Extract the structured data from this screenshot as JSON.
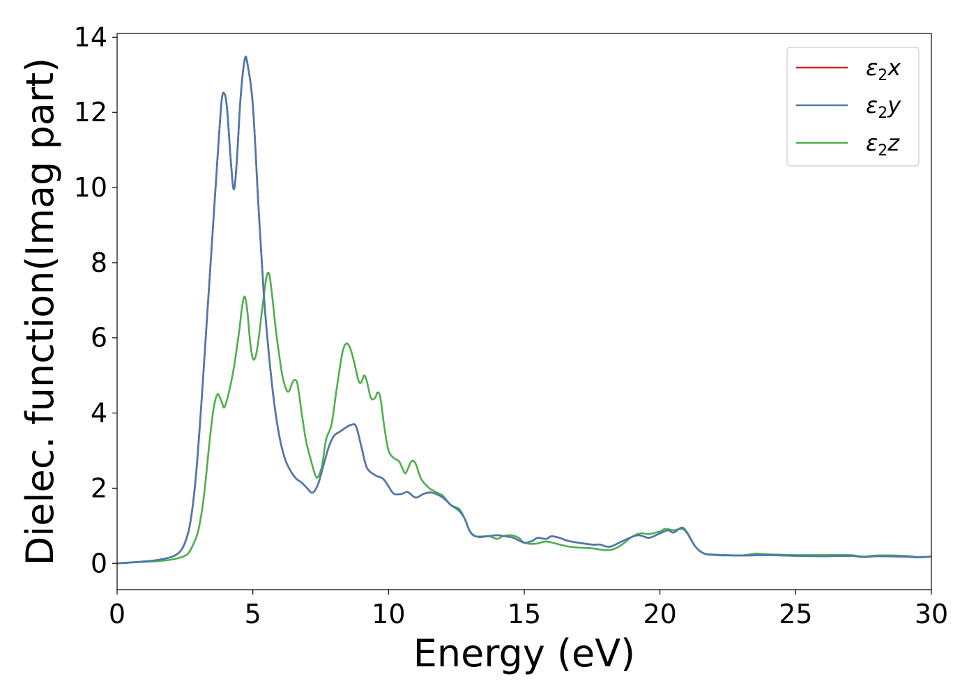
{
  "chart_data": {
    "type": "line",
    "xlabel": "Energy (eV)",
    "ylabel": "Dielec. function(Imag part)",
    "xlim": [
      0,
      30
    ],
    "ylim": [
      -0.7,
      14.1
    ],
    "xticks": [
      0,
      5,
      10,
      15,
      20,
      25,
      30
    ],
    "yticks": [
      0,
      2,
      4,
      6,
      8,
      10,
      12,
      14
    ],
    "grid": false,
    "legend_position": "top-right",
    "series": [
      {
        "name": "ε₂x",
        "legend_base": "ε",
        "legend_sub": "2",
        "legend_suffix": "x",
        "color": "#d62728",
        "points": [
          [
            0,
            0
          ],
          [
            1,
            0.05
          ],
          [
            1.5,
            0.09
          ],
          [
            2,
            0.17
          ],
          [
            2.3,
            0.3
          ],
          [
            2.5,
            0.55
          ],
          [
            2.7,
            1.1
          ],
          [
            2.9,
            2.3
          ],
          [
            3.1,
            4.2
          ],
          [
            3.3,
            6.4
          ],
          [
            3.5,
            8.6
          ],
          [
            3.7,
            10.8
          ],
          [
            3.85,
            12.3
          ],
          [
            3.95,
            12.5
          ],
          [
            4.05,
            12.1
          ],
          [
            4.2,
            10.6
          ],
          [
            4.3,
            9.95
          ],
          [
            4.4,
            10.6
          ],
          [
            4.55,
            12.4
          ],
          [
            4.7,
            13.4
          ],
          [
            4.8,
            13.3
          ],
          [
            5.0,
            12.2
          ],
          [
            5.2,
            9.6
          ],
          [
            5.4,
            7.2
          ],
          [
            5.6,
            5.5
          ],
          [
            5.8,
            4.2
          ],
          [
            6.0,
            3.3
          ],
          [
            6.2,
            2.75
          ],
          [
            6.4,
            2.45
          ],
          [
            6.6,
            2.25
          ],
          [
            6.8,
            2.15
          ],
          [
            7.0,
            2.0
          ],
          [
            7.2,
            1.88
          ],
          [
            7.4,
            2.1
          ],
          [
            7.6,
            2.6
          ],
          [
            7.8,
            3.1
          ],
          [
            8.0,
            3.4
          ],
          [
            8.2,
            3.5
          ],
          [
            8.4,
            3.6
          ],
          [
            8.6,
            3.68
          ],
          [
            8.8,
            3.65
          ],
          [
            9.0,
            3.1
          ],
          [
            9.2,
            2.55
          ],
          [
            9.5,
            2.35
          ],
          [
            9.8,
            2.25
          ],
          [
            10.0,
            2.05
          ],
          [
            10.2,
            1.85
          ],
          [
            10.5,
            1.85
          ],
          [
            10.7,
            1.9
          ],
          [
            11.0,
            1.75
          ],
          [
            11.3,
            1.85
          ],
          [
            11.6,
            1.88
          ],
          [
            12.0,
            1.75
          ],
          [
            12.3,
            1.55
          ],
          [
            12.6,
            1.4
          ],
          [
            12.8,
            1.2
          ],
          [
            13.0,
            0.85
          ],
          [
            13.2,
            0.72
          ],
          [
            13.6,
            0.72
          ],
          [
            14.0,
            0.75
          ],
          [
            14.3,
            0.72
          ],
          [
            14.6,
            0.68
          ],
          [
            15.0,
            0.55
          ],
          [
            15.3,
            0.6
          ],
          [
            15.5,
            0.68
          ],
          [
            15.8,
            0.65
          ],
          [
            16.0,
            0.72
          ],
          [
            16.3,
            0.68
          ],
          [
            16.6,
            0.6
          ],
          [
            17.0,
            0.55
          ],
          [
            17.5,
            0.5
          ],
          [
            17.8,
            0.5
          ],
          [
            18.0,
            0.45
          ],
          [
            18.2,
            0.45
          ],
          [
            18.5,
            0.55
          ],
          [
            18.8,
            0.65
          ],
          [
            19.2,
            0.75
          ],
          [
            19.6,
            0.68
          ],
          [
            20.0,
            0.8
          ],
          [
            20.3,
            0.88
          ],
          [
            20.5,
            0.82
          ],
          [
            20.8,
            0.95
          ],
          [
            21.0,
            0.82
          ],
          [
            21.3,
            0.45
          ],
          [
            21.6,
            0.27
          ],
          [
            22,
            0.23
          ],
          [
            23,
            0.21
          ],
          [
            24,
            0.22
          ],
          [
            25,
            0.2
          ],
          [
            26,
            0.19
          ],
          [
            27,
            0.2
          ],
          [
            27.5,
            0.17
          ],
          [
            28,
            0.19
          ],
          [
            29,
            0.18
          ],
          [
            29.5,
            0.16
          ],
          [
            30,
            0.18
          ]
        ]
      },
      {
        "name": "ε₂y",
        "legend_base": "ε",
        "legend_sub": "2",
        "legend_suffix": "y",
        "color": "#4a7ab0",
        "points": [
          [
            0,
            0
          ],
          [
            1,
            0.05
          ],
          [
            1.5,
            0.09
          ],
          [
            2,
            0.17
          ],
          [
            2.3,
            0.3
          ],
          [
            2.5,
            0.55
          ],
          [
            2.7,
            1.1
          ],
          [
            2.9,
            2.3
          ],
          [
            3.1,
            4.2
          ],
          [
            3.3,
            6.4
          ],
          [
            3.5,
            8.6
          ],
          [
            3.7,
            10.8
          ],
          [
            3.85,
            12.3
          ],
          [
            3.95,
            12.5
          ],
          [
            4.05,
            12.1
          ],
          [
            4.2,
            10.6
          ],
          [
            4.3,
            9.95
          ],
          [
            4.4,
            10.6
          ],
          [
            4.55,
            12.4
          ],
          [
            4.7,
            13.4
          ],
          [
            4.8,
            13.3
          ],
          [
            5.0,
            12.2
          ],
          [
            5.2,
            9.6
          ],
          [
            5.4,
            7.2
          ],
          [
            5.6,
            5.5
          ],
          [
            5.8,
            4.2
          ],
          [
            6.0,
            3.3
          ],
          [
            6.2,
            2.75
          ],
          [
            6.4,
            2.45
          ],
          [
            6.6,
            2.25
          ],
          [
            6.8,
            2.15
          ],
          [
            7.0,
            2.0
          ],
          [
            7.2,
            1.88
          ],
          [
            7.4,
            2.1
          ],
          [
            7.6,
            2.6
          ],
          [
            7.8,
            3.1
          ],
          [
            8.0,
            3.4
          ],
          [
            8.2,
            3.5
          ],
          [
            8.4,
            3.6
          ],
          [
            8.6,
            3.68
          ],
          [
            8.8,
            3.65
          ],
          [
            9.0,
            3.1
          ],
          [
            9.2,
            2.55
          ],
          [
            9.5,
            2.35
          ],
          [
            9.8,
            2.25
          ],
          [
            10.0,
            2.05
          ],
          [
            10.2,
            1.85
          ],
          [
            10.5,
            1.85
          ],
          [
            10.7,
            1.9
          ],
          [
            11.0,
            1.75
          ],
          [
            11.3,
            1.85
          ],
          [
            11.6,
            1.88
          ],
          [
            12.0,
            1.75
          ],
          [
            12.3,
            1.55
          ],
          [
            12.6,
            1.4
          ],
          [
            12.8,
            1.2
          ],
          [
            13.0,
            0.85
          ],
          [
            13.2,
            0.72
          ],
          [
            13.6,
            0.72
          ],
          [
            14.0,
            0.75
          ],
          [
            14.3,
            0.72
          ],
          [
            14.6,
            0.68
          ],
          [
            15.0,
            0.55
          ],
          [
            15.3,
            0.6
          ],
          [
            15.5,
            0.68
          ],
          [
            15.8,
            0.65
          ],
          [
            16.0,
            0.72
          ],
          [
            16.3,
            0.68
          ],
          [
            16.6,
            0.6
          ],
          [
            17.0,
            0.55
          ],
          [
            17.5,
            0.5
          ],
          [
            17.8,
            0.5
          ],
          [
            18.0,
            0.45
          ],
          [
            18.2,
            0.45
          ],
          [
            18.5,
            0.55
          ],
          [
            18.8,
            0.65
          ],
          [
            19.2,
            0.75
          ],
          [
            19.6,
            0.68
          ],
          [
            20.0,
            0.8
          ],
          [
            20.3,
            0.88
          ],
          [
            20.5,
            0.82
          ],
          [
            20.8,
            0.95
          ],
          [
            21.0,
            0.82
          ],
          [
            21.3,
            0.45
          ],
          [
            21.6,
            0.27
          ],
          [
            22,
            0.23
          ],
          [
            23,
            0.21
          ],
          [
            24,
            0.22
          ],
          [
            25,
            0.2
          ],
          [
            26,
            0.19
          ],
          [
            27,
            0.2
          ],
          [
            27.5,
            0.17
          ],
          [
            28,
            0.19
          ],
          [
            29,
            0.18
          ],
          [
            29.5,
            0.16
          ],
          [
            30,
            0.18
          ]
        ]
      },
      {
        "name": "ε₂z",
        "legend_base": "ε",
        "legend_sub": "2",
        "legend_suffix": "z",
        "color": "#4daf4a",
        "points": [
          [
            0,
            0
          ],
          [
            1,
            0.04
          ],
          [
            1.5,
            0.06
          ],
          [
            2,
            0.1
          ],
          [
            2.3,
            0.15
          ],
          [
            2.6,
            0.25
          ],
          [
            2.8,
            0.5
          ],
          [
            3.0,
            0.9
          ],
          [
            3.2,
            1.8
          ],
          [
            3.4,
            3.2
          ],
          [
            3.55,
            4.1
          ],
          [
            3.7,
            4.5
          ],
          [
            3.85,
            4.3
          ],
          [
            3.95,
            4.15
          ],
          [
            4.1,
            4.5
          ],
          [
            4.3,
            5.2
          ],
          [
            4.5,
            6.2
          ],
          [
            4.6,
            6.8
          ],
          [
            4.7,
            7.1
          ],
          [
            4.8,
            6.7
          ],
          [
            4.9,
            5.9
          ],
          [
            5.0,
            5.45
          ],
          [
            5.1,
            5.5
          ],
          [
            5.2,
            5.9
          ],
          [
            5.35,
            6.8
          ],
          [
            5.5,
            7.6
          ],
          [
            5.6,
            7.7
          ],
          [
            5.7,
            7.2
          ],
          [
            5.85,
            6.2
          ],
          [
            6.0,
            5.4
          ],
          [
            6.1,
            4.95
          ],
          [
            6.25,
            4.6
          ],
          [
            6.35,
            4.6
          ],
          [
            6.45,
            4.8
          ],
          [
            6.55,
            4.88
          ],
          [
            6.65,
            4.75
          ],
          [
            6.8,
            4.0
          ],
          [
            6.95,
            3.3
          ],
          [
            7.1,
            2.85
          ],
          [
            7.3,
            2.35
          ],
          [
            7.4,
            2.3
          ],
          [
            7.55,
            2.6
          ],
          [
            7.7,
            3.3
          ],
          [
            7.9,
            3.7
          ],
          [
            8.1,
            4.7
          ],
          [
            8.3,
            5.6
          ],
          [
            8.45,
            5.85
          ],
          [
            8.6,
            5.7
          ],
          [
            8.75,
            5.3
          ],
          [
            8.9,
            4.85
          ],
          [
            9.0,
            4.82
          ],
          [
            9.1,
            5.0
          ],
          [
            9.2,
            4.85
          ],
          [
            9.35,
            4.4
          ],
          [
            9.5,
            4.4
          ],
          [
            9.6,
            4.55
          ],
          [
            9.7,
            4.4
          ],
          [
            9.85,
            3.6
          ],
          [
            10.0,
            3.0
          ],
          [
            10.2,
            2.8
          ],
          [
            10.4,
            2.7
          ],
          [
            10.6,
            2.4
          ],
          [
            10.7,
            2.5
          ],
          [
            10.85,
            2.72
          ],
          [
            11.0,
            2.65
          ],
          [
            11.2,
            2.25
          ],
          [
            11.5,
            2.0
          ],
          [
            11.8,
            1.88
          ],
          [
            12.0,
            1.8
          ],
          [
            12.3,
            1.55
          ],
          [
            12.6,
            1.45
          ],
          [
            12.8,
            1.2
          ],
          [
            13.0,
            0.85
          ],
          [
            13.3,
            0.7
          ],
          [
            13.7,
            0.72
          ],
          [
            14.0,
            0.65
          ],
          [
            14.2,
            0.72
          ],
          [
            14.5,
            0.75
          ],
          [
            14.8,
            0.68
          ],
          [
            15.0,
            0.55
          ],
          [
            15.4,
            0.52
          ],
          [
            15.8,
            0.58
          ],
          [
            16.2,
            0.52
          ],
          [
            16.6,
            0.45
          ],
          [
            17.0,
            0.42
          ],
          [
            17.5,
            0.4
          ],
          [
            18.0,
            0.35
          ],
          [
            18.3,
            0.38
          ],
          [
            18.6,
            0.5
          ],
          [
            19.0,
            0.72
          ],
          [
            19.3,
            0.8
          ],
          [
            19.6,
            0.78
          ],
          [
            20.0,
            0.85
          ],
          [
            20.2,
            0.92
          ],
          [
            20.5,
            0.88
          ],
          [
            20.8,
            0.92
          ],
          [
            21.0,
            0.8
          ],
          [
            21.3,
            0.45
          ],
          [
            21.6,
            0.27
          ],
          [
            22,
            0.22
          ],
          [
            23,
            0.21
          ],
          [
            23.5,
            0.26
          ],
          [
            24,
            0.24
          ],
          [
            25,
            0.22
          ],
          [
            26,
            0.22
          ],
          [
            27,
            0.22
          ],
          [
            27.5,
            0.18
          ],
          [
            28,
            0.21
          ],
          [
            29,
            0.2
          ],
          [
            29.5,
            0.17
          ],
          [
            30,
            0.18
          ]
        ]
      }
    ]
  }
}
